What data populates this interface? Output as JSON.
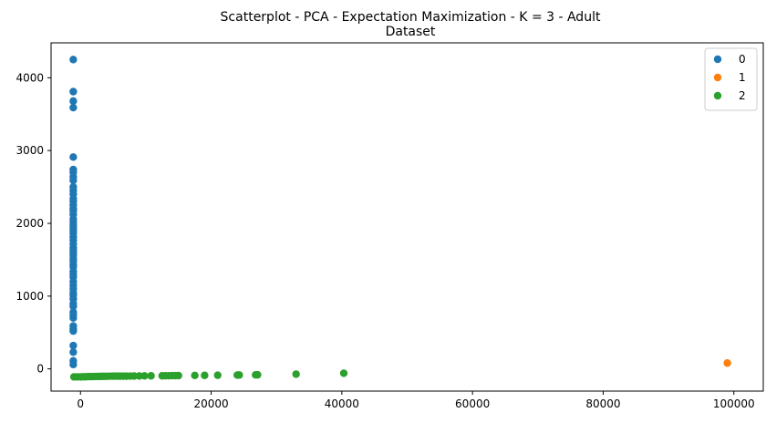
{
  "chart_data": {
    "type": "scatter",
    "title_lines": [
      "Scatterplot - PCA - Expectation Maximization - K = 3 - Adult",
      "Dataset"
    ],
    "xlim": [
      -4500,
      104500
    ],
    "ylim": [
      -305,
      4480
    ],
    "x_ticks": [
      0,
      20000,
      40000,
      60000,
      80000,
      100000
    ],
    "x_tick_labels": [
      "0",
      "20000",
      "40000",
      "60000",
      "80000",
      "100000"
    ],
    "y_ticks": [
      0,
      1000,
      2000,
      3000,
      4000
    ],
    "y_tick_labels": [
      "0",
      "1000",
      "2000",
      "3000",
      "4000"
    ],
    "grid": false,
    "legend": {
      "placement": "top-right"
    },
    "series": [
      {
        "name": "0",
        "color": "#1f77b4",
        "points": [
          [
            -1100,
            4250
          ],
          [
            -1100,
            3810
          ],
          [
            -1100,
            3680
          ],
          [
            -1100,
            3590
          ],
          [
            -1100,
            2910
          ],
          [
            -1100,
            2740
          ],
          [
            -1100,
            2700
          ],
          [
            -1100,
            2640
          ],
          [
            -1100,
            2590
          ],
          [
            -1100,
            2500
          ],
          [
            -1100,
            2450
          ],
          [
            -1100,
            2400
          ],
          [
            -1100,
            2340
          ],
          [
            -1100,
            2300
          ],
          [
            -1100,
            2250
          ],
          [
            -1100,
            2200
          ],
          [
            -1100,
            2170
          ],
          [
            -1100,
            2120
          ],
          [
            -1100,
            2060
          ],
          [
            -1100,
            2020
          ],
          [
            -1100,
            1980
          ],
          [
            -1100,
            1940
          ],
          [
            -1100,
            1900
          ],
          [
            -1100,
            1860
          ],
          [
            -1100,
            1810
          ],
          [
            -1100,
            1770
          ],
          [
            -1100,
            1720
          ],
          [
            -1100,
            1670
          ],
          [
            -1100,
            1640
          ],
          [
            -1100,
            1600
          ],
          [
            -1100,
            1560
          ],
          [
            -1100,
            1520
          ],
          [
            -1100,
            1480
          ],
          [
            -1100,
            1430
          ],
          [
            -1100,
            1400
          ],
          [
            -1100,
            1340
          ],
          [
            -1100,
            1300
          ],
          [
            -1100,
            1260
          ],
          [
            -1100,
            1200
          ],
          [
            -1100,
            1150
          ],
          [
            -1100,
            1100
          ],
          [
            -1100,
            1050
          ],
          [
            -1100,
            1010
          ],
          [
            -1100,
            960
          ],
          [
            -1100,
            900
          ],
          [
            -1100,
            860
          ],
          [
            -1100,
            780
          ],
          [
            -1100,
            740
          ],
          [
            -1100,
            700
          ],
          [
            -1100,
            590
          ],
          [
            -1100,
            550
          ],
          [
            -1100,
            520
          ],
          [
            -1100,
            320
          ],
          [
            -1100,
            230
          ],
          [
            -1100,
            110
          ],
          [
            -1100,
            60
          ]
        ]
      },
      {
        "name": "1",
        "color": "#ff7f0e",
        "points": [
          [
            99000,
            80
          ]
        ]
      },
      {
        "name": "2",
        "color": "#2ca02c",
        "points": [
          [
            -1000,
            -110
          ],
          [
            -500,
            -110
          ],
          [
            0,
            -110
          ],
          [
            400,
            -108
          ],
          [
            800,
            -108
          ],
          [
            1200,
            -106
          ],
          [
            1600,
            -106
          ],
          [
            2000,
            -105
          ],
          [
            2400,
            -104
          ],
          [
            2800,
            -104
          ],
          [
            3200,
            -103
          ],
          [
            3600,
            -102
          ],
          [
            4000,
            -102
          ],
          [
            4500,
            -101
          ],
          [
            5000,
            -100
          ],
          [
            5500,
            -100
          ],
          [
            6000,
            -100
          ],
          [
            6500,
            -100
          ],
          [
            7000,
            -100
          ],
          [
            7600,
            -99
          ],
          [
            8200,
            -98
          ],
          [
            9000,
            -97
          ],
          [
            9800,
            -96
          ],
          [
            10800,
            -95
          ],
          [
            12500,
            -95
          ],
          [
            13000,
            -94
          ],
          [
            13500,
            -94
          ],
          [
            14000,
            -93
          ],
          [
            14500,
            -93
          ],
          [
            15000,
            -92
          ],
          [
            17500,
            -90
          ],
          [
            19000,
            -89
          ],
          [
            21000,
            -87
          ],
          [
            24000,
            -85
          ],
          [
            24300,
            -84
          ],
          [
            26800,
            -82
          ],
          [
            27100,
            -81
          ],
          [
            33000,
            -72
          ],
          [
            40300,
            -60
          ]
        ]
      }
    ]
  }
}
